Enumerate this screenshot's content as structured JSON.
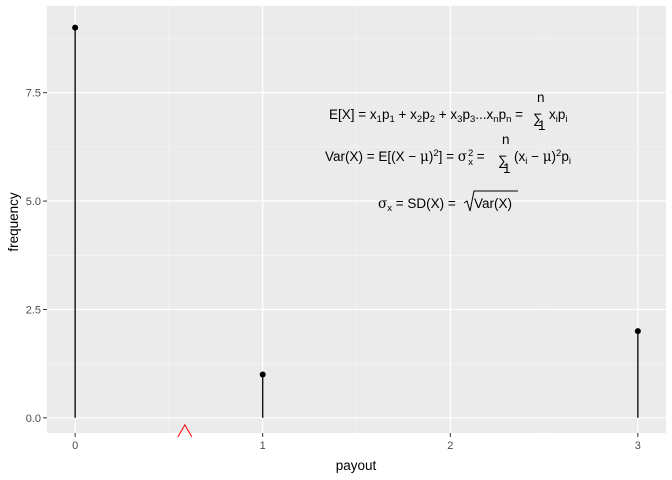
{
  "chart_data": {
    "type": "stem",
    "xlabel": "payout",
    "ylabel": "frequency",
    "xlim": [
      -0.15,
      3.15
    ],
    "ylim": [
      -0.35,
      9.5
    ],
    "x_ticks": [
      0,
      1,
      2,
      3
    ],
    "x_tick_labels": [
      "0",
      "1",
      "2",
      "3"
    ],
    "y_ticks": [
      0,
      2.5,
      5,
      7.5
    ],
    "y_tick_labels": [
      "0.0",
      "2.5",
      "5.0",
      "7.5"
    ],
    "points": [
      {
        "x": 0,
        "y": 9
      },
      {
        "x": 1,
        "y": 1
      },
      {
        "x": 3,
        "y": 2
      }
    ],
    "marker": {
      "x": 0.585,
      "y": -0.3,
      "shape": "triangle-open",
      "color": "#ff0000"
    },
    "grid": true,
    "panel_color": "#ebebeb",
    "annotations": [
      "E[X] = x1p1 + x2p2 + x3p3...xnpn = Σ(i=1..n) xipi",
      "Var(X) = E[(X − μ)²] = σx² = Σ(i=1..n) (xi − μ)²pi",
      "σx = SD(X) = √Var(X)"
    ]
  }
}
